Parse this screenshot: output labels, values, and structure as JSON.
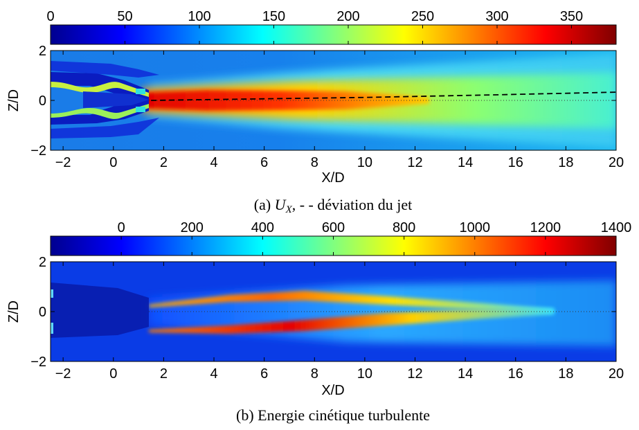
{
  "chart_data": [
    {
      "type": "heatmap",
      "id": "a",
      "caption": "(a) ",
      "caption_math": "U",
      "caption_math_sub": "X",
      "caption_rest": ", - - déviation du jet",
      "xlabel": "X/D",
      "ylabel": "Z/D",
      "xlim": [
        -2.5,
        20
      ],
      "ylim": [
        -2,
        2
      ],
      "x_ticks": [
        -2,
        0,
        2,
        4,
        6,
        8,
        10,
        12,
        14,
        16,
        18,
        20
      ],
      "y_ticks": [
        -2,
        0,
        2
      ],
      "colorbar": {
        "min": 0,
        "max": 380,
        "ticks": [
          0,
          50,
          100,
          150,
          200,
          250,
          300,
          350
        ]
      },
      "series": [
        {
          "name": "déviation du jet",
          "style": "dashed",
          "x": [
            1.5,
            5,
            10,
            15,
            20
          ],
          "y": [
            0.0,
            0.05,
            0.12,
            0.22,
            0.33
          ]
        }
      ],
      "grid": false
    },
    {
      "type": "heatmap",
      "id": "b",
      "caption": "(b) Energie cinétique turbulente",
      "xlabel": "X/D",
      "ylabel": "Z/D",
      "xlim": [
        -2.5,
        20
      ],
      "ylim": [
        -2,
        2
      ],
      "x_ticks": [
        -2,
        0,
        2,
        4,
        6,
        8,
        10,
        12,
        14,
        16,
        18,
        20
      ],
      "y_ticks": [
        -2,
        0,
        2
      ],
      "colorbar": {
        "min": -200,
        "max": 1400,
        "ticks": [
          0,
          200,
          400,
          600,
          800,
          1000,
          1200,
          1400
        ]
      },
      "grid": false
    }
  ]
}
